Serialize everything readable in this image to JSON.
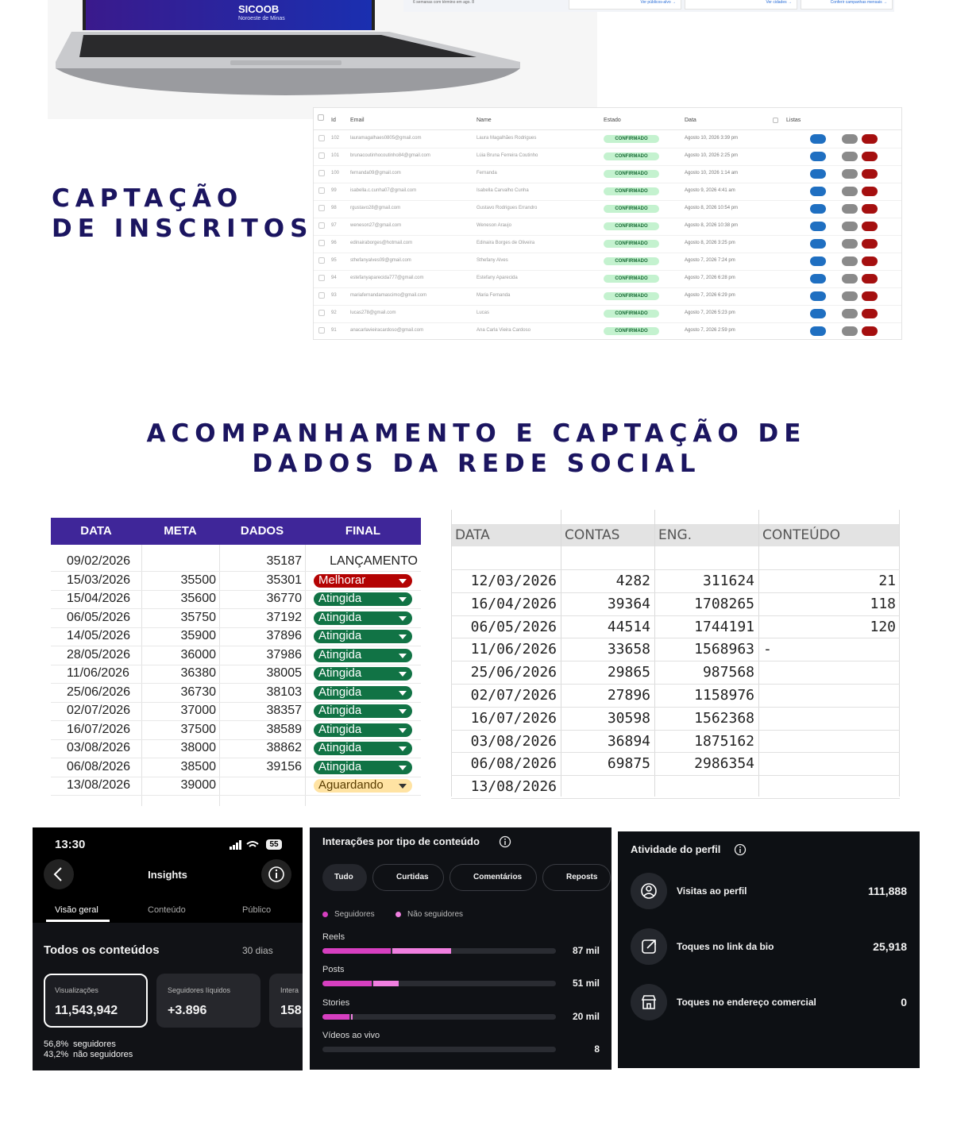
{
  "hero": {
    "brand": "SICOOB",
    "brand_sub": "Noroeste de Minas",
    "dashboard_note": "6 semanas com término em ago. 8",
    "links": [
      "Ver públicos-alvo →",
      "Ver cidades →",
      "Conferir campanhas mensais →"
    ]
  },
  "section1": {
    "title_lines": [
      "CAPTAÇÃO",
      "DE INSCRITOS"
    ]
  },
  "subscribers": {
    "columns": [
      "Id",
      "Email",
      "Name",
      "Estado",
      "Data",
      "Listas"
    ],
    "rows": [
      [
        102,
        "lauramagalhaes0805@gmail.com",
        "Laura Magalhães Rodrigues",
        "CONFIRMADO",
        "Agosto 10, 2026 3:39 pm"
      ],
      [
        101,
        "brunacoutinhocoutinho84@gmail.com",
        "Lúia Bruna Ferreira Coutinho",
        "CONFIRMADO",
        "Agosto 10, 2026 2:25 pm"
      ],
      [
        100,
        "fernanda09@gmail.com",
        "Fernanda",
        "CONFIRMADO",
        "Agosto 10, 2026 1:14 am"
      ],
      [
        99,
        "isabella.c.cunha07@gmail.com",
        "Isabella Carvalho Cunha",
        "CONFIRMADO",
        "Agosto 9, 2026 4:41 am"
      ],
      [
        98,
        "rgustavo28@gmail.com",
        "Gustavo Rodrigues Errandro",
        "CONFIRMADO",
        "Agosto 8, 2026 10:54 pm"
      ],
      [
        97,
        "weneson27@gmail.com",
        "Weneson Araujo",
        "CONFIRMADO",
        "Agosto 8, 2026 10:38 pm"
      ],
      [
        96,
        "edinairaborges@hotmail.com",
        "Edinaira Borges de Oliveira",
        "CONFIRMADO",
        "Agosto 8, 2026 3:25 pm"
      ],
      [
        95,
        "sthefanyalves09@gmail.com",
        "Sthefany Alves",
        "CONFIRMADO",
        "Agosto 7, 2026 7:24 pm"
      ],
      [
        94,
        "estefanyaparecida777@gmail.com",
        "Estefany Aparecida",
        "CONFIRMADO",
        "Agosto 7, 2026 6:28 pm"
      ],
      [
        93,
        "mariafernandamascimo@gmail.com",
        "Maria Fernanda",
        "CONFIRMADO",
        "Agosto 7, 2026 6:29 pm"
      ],
      [
        92,
        "lucas278@gmail.com",
        "Lucas",
        "CONFIRMADO",
        "Agosto 7, 2026 5:23 pm"
      ],
      [
        91,
        "anacarlavieiracardoso@gmail.com",
        "Ana Carla Vieira Cardoso",
        "CONFIRMADO",
        "Agosto 7, 2026 2:59 pm"
      ]
    ]
  },
  "section2": {
    "title_lines": [
      "ACOMPANHAMENTO E CAPTAÇÃO DE",
      "DADOS DA REDE SOCIAL"
    ]
  },
  "goals_table": {
    "columns": [
      "DATA",
      "META",
      "DADOS",
      "FINAL"
    ],
    "rows": [
      {
        "data": "09/02/2026",
        "dados": 35187,
        "final": "LANÇAMENTO"
      },
      {
        "data": "15/03/2026",
        "meta": 35500,
        "dados": 35301,
        "final": "Melhorar"
      },
      {
        "data": "15/04/2026",
        "meta": 35600,
        "dados": 36770,
        "final": "Atingida"
      },
      {
        "data": "06/05/2026",
        "meta": 35750,
        "dados": 37192,
        "final": "Atingida"
      },
      {
        "data": "14/05/2026",
        "meta": 35900,
        "dados": 37896,
        "final": "Atingida"
      },
      {
        "data": "28/05/2026",
        "meta": 36000,
        "dados": 37986,
        "final": "Atingida"
      },
      {
        "data": "11/06/2026",
        "meta": 36380,
        "dados": 38005,
        "final": "Atingida"
      },
      {
        "data": "25/06/2026",
        "meta": 36730,
        "dados": 38103,
        "final": "Atingida"
      },
      {
        "data": "02/07/2026",
        "meta": 37000,
        "dados": 38357,
        "final": "Atingida"
      },
      {
        "data": "16/07/2026",
        "meta": 37500,
        "dados": 38589,
        "final": "Atingida"
      },
      {
        "data": "03/08/2026",
        "meta": 38000,
        "dados": 38862,
        "final": "Atingida"
      },
      {
        "data": "06/08/2026",
        "meta": 38500,
        "dados": 39156,
        "final": "Atingida"
      },
      {
        "data": "13/08/2026",
        "meta": 39000,
        "final": "Aguardando"
      }
    ]
  },
  "metrics_table": {
    "columns": [
      "DATA",
      "CONTAS",
      "ENG.",
      "CONTEÚDO"
    ],
    "rows": [
      {
        "data": "12/03/2026",
        "contas": 4282,
        "eng": 311624,
        "conteudo": 21
      },
      {
        "data": "16/04/2026",
        "contas": 39364,
        "eng": 1708265,
        "conteudo": 118
      },
      {
        "data": "06/05/2026",
        "contas": 44514,
        "eng": 1744191,
        "conteudo": 120
      },
      {
        "data": "11/06/2026",
        "contas": 33658,
        "eng": 1568963,
        "conteudo": "-"
      },
      {
        "data": "25/06/2026",
        "contas": 29865,
        "eng": 987568
      },
      {
        "data": "02/07/2026",
        "contas": 27896,
        "eng": 1158976
      },
      {
        "data": "16/07/2026",
        "contas": 30598,
        "eng": 1562368
      },
      {
        "data": "03/08/2026",
        "contas": 36894,
        "eng": 1875162
      },
      {
        "data": "06/08/2026",
        "contas": 69875,
        "eng": 2986354
      },
      {
        "data": "13/08/2026"
      }
    ]
  },
  "insights": {
    "time": "13:30",
    "battery": "55",
    "title": "Insights",
    "tabs": [
      "Visão geral",
      "Conteúdo",
      "Público"
    ],
    "section": "Todos os conteúdos",
    "period": "30 dias",
    "cards": [
      {
        "label": "Visualizações",
        "value": "11,543,942"
      },
      {
        "label": "Seguidores líquidos",
        "value": "+3.896"
      },
      {
        "label": "Intera",
        "value": "158"
      }
    ],
    "split": [
      {
        "pct": "56,8%",
        "label": "seguidores"
      },
      {
        "pct": "43,2%",
        "label": "não seguidores"
      }
    ]
  },
  "interactions": {
    "title": "Interações por tipo de conteúdo",
    "chips": [
      "Tudo",
      "Curtidas",
      "Comentários",
      "Reposts"
    ],
    "legend": [
      "Seguidores",
      "Não seguidores"
    ],
    "rows": [
      {
        "label": "Reels",
        "value": "87 mil"
      },
      {
        "label": "Posts",
        "value": "51 mil"
      },
      {
        "label": "Stories",
        "value": "20 mil"
      },
      {
        "label": "Vídeos ao vivo",
        "value": "8"
      }
    ]
  },
  "activity": {
    "title": "Atividade do perfil",
    "rows": [
      {
        "label": "Visitas ao perfil",
        "value": "111,888"
      },
      {
        "label": "Toques no link da bio",
        "value": "25,918"
      },
      {
        "label": "Toques no endereço comercial",
        "value": "0"
      }
    ]
  }
}
